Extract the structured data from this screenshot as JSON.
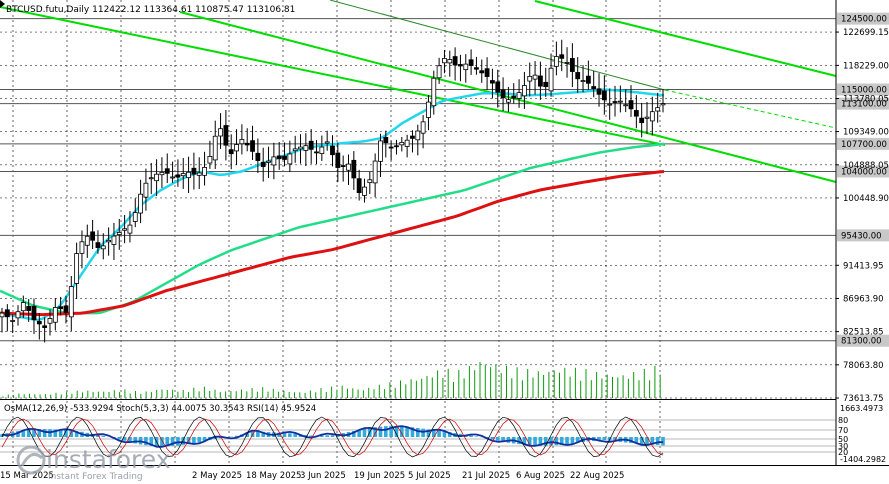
{
  "chart_data": [
    {
      "type": "candlestick",
      "title": "BTCUSD.futu,Daily  112422.12 113364.61 110875.47 113106.81",
      "x_tick_labels": [
        "15 Mar 2025",
        "2 May 2025",
        "18 May 2025",
        "3 Jun 2025",
        "19 Jun 2025",
        "5 Jul 2025",
        "21 Jul 2025",
        "6 Aug 2025",
        "22 Aug 2025"
      ],
      "y_tick_labels": [
        "122699.15",
        "118229.00",
        "113780.05",
        "109349.00",
        "104888.05",
        "100448.90",
        "91413.95",
        "86963.90",
        "82513.85",
        "78063.80",
        "73613.75"
      ],
      "ylim": [
        73613.75,
        127000
      ],
      "level_labels": [
        "124500.00",
        "115000.00",
        "113100.00",
        "107700.00",
        "104000.00",
        "95430.00",
        "81300.00"
      ],
      "levels": [
        124500,
        115000,
        113100,
        107700,
        104000,
        95430,
        81300
      ],
      "grid": true,
      "series": [
        {
          "values": [
            85000,
            84000,
            86500,
            84000,
            83000,
            86000,
            85000,
            94000,
            95500,
            93500,
            95000,
            96000,
            97000,
            102000,
            103500,
            104000,
            103000,
            104000,
            103500,
            105000,
            110500,
            106000,
            108500,
            107000,
            104500,
            106000,
            105500,
            107000,
            107500,
            106500,
            108000,
            104500,
            105000,
            101000,
            103000,
            108500,
            107000,
            108000,
            108500,
            111000,
            117500,
            119500,
            118000,
            118500,
            117500,
            116500,
            114000,
            113500,
            115000,
            117500,
            114500,
            119500,
            119000,
            116500,
            116000,
            114500,
            113000,
            113500,
            112500,
            110500,
            112000,
            113100
          ]
        },
        {
          "values": [
            85000,
            84500,
            84000,
            86000,
            90000,
            94000,
            96500,
            99500,
            101500,
            103000,
            104000,
            103500,
            104000,
            105000,
            106000,
            107000,
            107500,
            107800,
            108000,
            108500,
            110500,
            112000,
            113500,
            114000,
            114500,
            114500,
            114200,
            114300,
            114500,
            114700,
            115000,
            114800,
            114500,
            114200
          ]
        },
        {
          "values": [
            88000,
            86000,
            85000,
            85000,
            86500,
            89000,
            91500,
            93500,
            95000,
            96500,
            97500,
            98500,
            99500,
            100500,
            101500,
            103000,
            104500,
            105500,
            106500,
            107200,
            107700
          ]
        },
        {
          "values": [
            85000,
            84800,
            85000,
            86000,
            88000,
            89500,
            91000,
            92500,
            93500,
            95000,
            96500,
            98000,
            100000,
            101500,
            102500,
            103400,
            104000
          ]
        }
      ]
    },
    {
      "type": "line",
      "title": "OsMA(12,26,9) -533.9294  Stoch(5,3,3) 44.0075 30.3543  RSI(14) 45.9524",
      "y_tick_labels": [
        "1663.4973",
        "80",
        "70",
        "50",
        "30",
        "20",
        "-1404.2982"
      ],
      "series": [
        {
          "values": [
            180,
            420,
            520,
            480,
            360,
            120,
            -140,
            -460,
            -620,
            -560,
            -380,
            -120,
            60,
            360,
            300,
            220,
            80,
            120,
            360,
            610,
            720,
            640,
            480,
            320,
            120,
            -80,
            -360,
            -520,
            -560,
            -480,
            -300,
            -200,
            -340,
            -460,
            -534
          ]
        }
      ]
    }
  ],
  "watermark": {
    "brand": "instaforex",
    "tagline": "Instant Forex Trading"
  },
  "colors": {
    "candle": "#000000",
    "channel": "#00dd00",
    "ma_fast": "#22d6ee",
    "ma_mid": "#22dd88",
    "ma_slow": "#dd1111",
    "volume": "#0d9b0d",
    "osma": "#33aadd",
    "rsi": "#1030a0",
    "stoch_main": "#000000",
    "stoch_signal": "#cc0000",
    "grid": "#000000"
  }
}
